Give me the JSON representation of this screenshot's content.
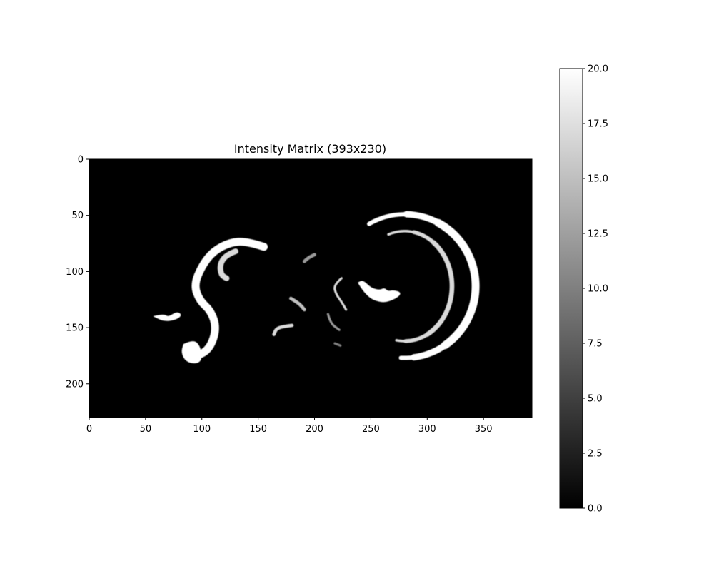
{
  "chart_data": {
    "type": "heatmap",
    "title": "Intensity Matrix (393x230)",
    "matrix_size": {
      "columns": 393,
      "rows": 230
    },
    "colormap": "gray",
    "background_value": 0,
    "x_range": [
      0,
      393
    ],
    "y_range": [
      0,
      230
    ],
    "y_axis_inverted": true,
    "x_ticks": [
      0,
      50,
      100,
      150,
      200,
      250,
      300,
      350
    ],
    "y_ticks": [
      0,
      50,
      100,
      150,
      200
    ],
    "colorbar": {
      "min": 0.0,
      "max": 20.0,
      "ticks": [
        "0.0",
        "2.5",
        "5.0",
        "7.5",
        "10.0",
        "12.5",
        "15.0",
        "17.5",
        "20.0"
      ]
    },
    "bright_shapes": [
      {
        "kind": "arc",
        "description": "outer ring",
        "center": [
          280,
          113
        ],
        "radius_x": 63,
        "radius_y": 64,
        "angle_from_deg": -120,
        "angle_to_deg": 95,
        "value": 20
      },
      {
        "kind": "arc",
        "description": "inner ring",
        "center": [
          280,
          113
        ],
        "radius_x": 42,
        "radius_y": 49,
        "angle_from_deg": -110,
        "angle_to_deg": 100,
        "value": 17
      },
      {
        "kind": "blob",
        "description": "crescent",
        "points": [
          [
            239,
            110
          ],
          [
            246,
            122
          ],
          [
            260,
            128
          ],
          [
            272,
            124
          ],
          [
            277,
            119
          ],
          [
            270,
            117
          ],
          [
            265,
            118
          ],
          [
            262,
            115
          ],
          [
            258,
            117
          ],
          [
            250,
            115
          ],
          [
            243,
            108
          ]
        ],
        "value": 20
      },
      {
        "kind": "stroke",
        "description": "S-shaped curve",
        "points": [
          [
            155,
            78
          ],
          [
            140,
            73
          ],
          [
            125,
            74
          ],
          [
            110,
            82
          ],
          [
            100,
            95
          ],
          [
            93,
            112
          ],
          [
            98,
            126
          ],
          [
            108,
            135
          ],
          [
            113,
            150
          ],
          [
            108,
            167
          ],
          [
            98,
            175
          ],
          [
            90,
            172
          ]
        ],
        "width": 7,
        "value": 20
      },
      {
        "kind": "stroke",
        "description": "small hook",
        "points": [
          [
            130,
            82
          ],
          [
            122,
            85
          ],
          [
            116,
            93
          ],
          [
            117,
            103
          ],
          [
            122,
            106
          ]
        ],
        "width": 5,
        "value": 17
      },
      {
        "kind": "blob",
        "description": "lower loop",
        "points": [
          [
            84,
            165
          ],
          [
            92,
            161
          ],
          [
            98,
            166
          ],
          [
            100,
            178
          ],
          [
            95,
            182
          ],
          [
            86,
            180
          ],
          [
            82,
            172
          ]
        ],
        "value": 20
      },
      {
        "kind": "blob",
        "description": "left tick",
        "points": [
          [
            58,
            140
          ],
          [
            66,
            138
          ],
          [
            70,
            141
          ],
          [
            78,
            136
          ],
          [
            82,
            139
          ],
          [
            76,
            143
          ],
          [
            66,
            144
          ]
        ],
        "value": 20
      },
      {
        "kind": "stroke",
        "description": "small arc",
        "points": [
          [
            180,
            148
          ],
          [
            172,
            149
          ],
          [
            166,
            151
          ],
          [
            164,
            156
          ]
        ],
        "width": 3,
        "value": 17
      },
      {
        "kind": "stroke",
        "description": "short diagonal",
        "points": [
          [
            179,
            124
          ],
          [
            186,
            128
          ],
          [
            191,
            134
          ]
        ],
        "width": 3,
        "value": 15
      },
      {
        "kind": "stroke",
        "description": "short hook",
        "points": [
          [
            191,
            91
          ],
          [
            194,
            88
          ],
          [
            200,
            85
          ]
        ],
        "width": 3,
        "value": 12
      },
      {
        "kind": "stroke",
        "description": "jagged stroke",
        "points": [
          [
            224,
            106
          ],
          [
            217,
            112
          ],
          [
            219,
            120
          ],
          [
            224,
            127
          ],
          [
            228,
            134
          ]
        ],
        "width": 2,
        "value": 17
      },
      {
        "kind": "stroke",
        "description": "faint arc",
        "points": [
          [
            212,
            138
          ],
          [
            214,
            146
          ],
          [
            222,
            152
          ]
        ],
        "width": 2,
        "value": 12
      },
      {
        "kind": "stroke",
        "description": "faint speck",
        "points": [
          [
            218,
            164
          ],
          [
            223,
            166
          ]
        ],
        "width": 2,
        "value": 10
      }
    ]
  }
}
